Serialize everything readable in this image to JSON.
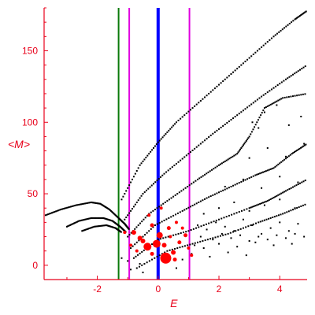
{
  "chart_data": {
    "type": "scatter",
    "xlabel": "E",
    "ylabel": "<M>",
    "xlim": [
      -3.75,
      4.9
    ],
    "ylim": [
      -10,
      180
    ],
    "xticks": [
      -2,
      0,
      2,
      4
    ],
    "yticks": [
      0,
      50,
      100,
      150
    ],
    "grid": false,
    "axis_color": "#e8001a",
    "vertical_lines": [
      {
        "x": -1.3,
        "color": "#0a7a0a"
      },
      {
        "x": -0.95,
        "color": "#e000e0"
      },
      {
        "x": 0.0,
        "color": "#0000ff"
      },
      {
        "x": 1.03,
        "color": "#e000e0"
      }
    ],
    "curves": [
      {
        "color": "#000000",
        "points": [
          [
            -3.7,
            35
          ],
          [
            -3.2,
            39
          ],
          [
            -2.7,
            42
          ],
          [
            -2.2,
            44
          ],
          [
            -1.9,
            43
          ],
          [
            -1.6,
            39
          ],
          [
            -1.3,
            33
          ],
          [
            -1.1,
            29
          ],
          [
            -0.95,
            25
          ]
        ]
      },
      {
        "color": "#000000",
        "points": [
          [
            -3.0,
            27
          ],
          [
            -2.6,
            31
          ],
          [
            -2.2,
            33
          ],
          [
            -1.8,
            33
          ],
          [
            -1.5,
            31
          ],
          [
            -1.25,
            27
          ],
          [
            -1.05,
            23
          ]
        ]
      },
      {
        "color": "#000000",
        "points": [
          [
            -2.5,
            24
          ],
          [
            -2.1,
            27
          ],
          [
            -1.7,
            28
          ],
          [
            -1.4,
            26
          ],
          [
            -1.2,
            23
          ]
        ]
      },
      {
        "color": "#000000",
        "points": [
          [
            -1.2,
            46
          ],
          [
            -0.6,
            70
          ],
          [
            0,
            86
          ],
          [
            0.6,
            100
          ],
          [
            1.4,
            115
          ],
          [
            2.2,
            130
          ],
          [
            3.0,
            145
          ],
          [
            3.8,
            160
          ],
          [
            4.5,
            172
          ],
          [
            4.9,
            178
          ]
        ]
      },
      {
        "color": "#000000",
        "points": [
          [
            -1.1,
            32
          ],
          [
            -0.5,
            50
          ],
          [
            0.2,
            64
          ],
          [
            1.0,
            78
          ],
          [
            1.8,
            92
          ],
          [
            2.6,
            105
          ],
          [
            3.4,
            118
          ],
          [
            4.2,
            130
          ],
          [
            4.9,
            140
          ]
        ]
      },
      {
        "color": "#000000",
        "points": [
          [
            -1.0,
            20
          ],
          [
            -0.3,
            36
          ],
          [
            0.5,
            48
          ],
          [
            1.3,
            60
          ],
          [
            2.0,
            70
          ],
          [
            2.6,
            78
          ],
          [
            3.0,
            90
          ],
          [
            3.5,
            110
          ],
          [
            4.1,
            117
          ],
          [
            4.9,
            120
          ]
        ]
      },
      {
        "color": "#000000",
        "points": [
          [
            -0.9,
            12
          ],
          [
            -0.1,
            28
          ],
          [
            0.8,
            38
          ],
          [
            1.6,
            47
          ],
          [
            2.4,
            55
          ],
          [
            3.2,
            63
          ],
          [
            3.8,
            68
          ],
          [
            4.4,
            78
          ],
          [
            4.9,
            85
          ]
        ]
      },
      {
        "color": "#000000",
        "points": [
          [
            -0.8,
            5
          ],
          [
            0,
            18
          ],
          [
            1.0,
            24
          ],
          [
            2.0,
            32
          ],
          [
            3.0,
            40
          ],
          [
            3.6,
            45
          ],
          [
            4.2,
            52
          ],
          [
            4.9,
            60
          ]
        ]
      },
      {
        "color": "#000000",
        "points": [
          [
            -0.7,
            -2
          ],
          [
            0.3,
            10
          ],
          [
            1.3,
            16
          ],
          [
            2.3,
            22
          ],
          [
            3.3,
            30
          ],
          [
            4.1,
            36
          ],
          [
            4.9,
            43
          ]
        ]
      }
    ],
    "scattered_points": [
      [
        1.3,
        28
      ],
      [
        1.6,
        25
      ],
      [
        1.9,
        30
      ],
      [
        2.2,
        27
      ],
      [
        2.5,
        24
      ],
      [
        2.8,
        32
      ],
      [
        3.1,
        28
      ],
      [
        3.4,
        22
      ],
      [
        3.7,
        26
      ],
      [
        4.0,
        30
      ],
      [
        4.3,
        24
      ],
      [
        4.6,
        29
      ],
      [
        1.4,
        20
      ],
      [
        1.8,
        18
      ],
      [
        2.1,
        22
      ],
      [
        2.4,
        19
      ],
      [
        2.7,
        21
      ],
      [
        3.0,
        17
      ],
      [
        3.3,
        20
      ],
      [
        3.6,
        18
      ],
      [
        3.9,
        21
      ],
      [
        4.2,
        19
      ],
      [
        4.5,
        22
      ],
      [
        4.8,
        20
      ],
      [
        1.2,
        14
      ],
      [
        1.5,
        12
      ],
      [
        2.0,
        15
      ],
      [
        2.6,
        13
      ],
      [
        3.2,
        16
      ],
      [
        3.8,
        14
      ],
      [
        4.4,
        15
      ],
      [
        1.1,
        8
      ],
      [
        1.7,
        6
      ],
      [
        2.3,
        9
      ],
      [
        2.9,
        7
      ],
      [
        1.5,
        36
      ],
      [
        2.0,
        40
      ],
      [
        2.5,
        44
      ],
      [
        3.0,
        38
      ],
      [
        3.5,
        42
      ],
      [
        4.0,
        46
      ],
      [
        4.5,
        40
      ],
      [
        2.2,
        55
      ],
      [
        2.8,
        60
      ],
      [
        3.4,
        54
      ],
      [
        4.0,
        62
      ],
      [
        4.6,
        58
      ],
      [
        3.0,
        75
      ],
      [
        3.6,
        82
      ],
      [
        4.2,
        76
      ],
      [
        4.8,
        85
      ],
      [
        3.1,
        100
      ],
      [
        3.3,
        96
      ],
      [
        3.5,
        107
      ],
      [
        3.9,
        112
      ],
      [
        4.3,
        98
      ],
      [
        4.7,
        104
      ],
      [
        -1.2,
        5
      ],
      [
        -1.0,
        3
      ],
      [
        -0.9,
        -3
      ],
      [
        -0.6,
        1
      ],
      [
        -0.5,
        -5
      ],
      [
        0.6,
        -2
      ],
      [
        0.8,
        4
      ]
    ],
    "red_clusters": [
      {
        "x": 0.25,
        "y": 5,
        "size": 7
      },
      {
        "x": 0.05,
        "y": 21,
        "size": 4
      },
      {
        "x": -0.05,
        "y": 15,
        "size": 5
      },
      {
        "x": -0.35,
        "y": 13,
        "size": 5
      },
      {
        "x": 0.2,
        "y": 14,
        "size": 3
      },
      {
        "x": 0.5,
        "y": 9,
        "size": 3
      },
      {
        "x": -0.6,
        "y": 19,
        "size": 3
      },
      {
        "x": -0.8,
        "y": 23,
        "size": 3
      },
      {
        "x": -0.5,
        "y": 17,
        "size": 3
      },
      {
        "x": 0.7,
        "y": 16,
        "size": 2.5
      },
      {
        "x": 0.9,
        "y": 21,
        "size": 2.5
      },
      {
        "x": -0.2,
        "y": 28,
        "size": 2.5
      },
      {
        "x": 0.35,
        "y": 26,
        "size": 2.5
      },
      {
        "x": -0.2,
        "y": 8,
        "size": 2.5
      },
      {
        "x": 0.55,
        "y": 4,
        "size": 2.5
      },
      {
        "x": 1.0,
        "y": 12,
        "size": 2
      },
      {
        "x": 1.1,
        "y": 7,
        "size": 2
      },
      {
        "x": -1.1,
        "y": 23,
        "size": 2
      },
      {
        "x": -0.3,
        "y": 35,
        "size": 2
      },
      {
        "x": 0.1,
        "y": 40,
        "size": 2
      },
      {
        "x": 0.6,
        "y": 30,
        "size": 2
      },
      {
        "x": -0.7,
        "y": 10,
        "size": 2
      },
      {
        "x": 0.4,
        "y": 20,
        "size": 2
      },
      {
        "x": 0.8,
        "y": 26,
        "size": 2
      },
      {
        "x": -0.9,
        "y": 14,
        "size": 2
      }
    ]
  }
}
